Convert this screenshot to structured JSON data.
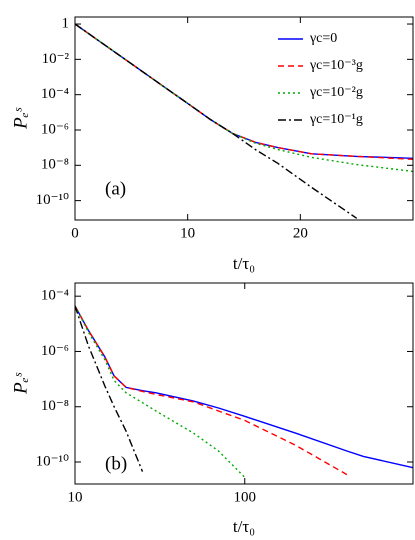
{
  "chart_data": [
    {
      "type": "line",
      "annotation": "(a)",
      "xlabel": "t/τ₀",
      "ylabel": "Pₑˢ",
      "x": [
        0,
        2,
        4,
        6,
        8,
        10,
        12,
        14,
        16,
        18,
        21,
        25,
        30
      ],
      "series": [
        {
          "name": "γc=0",
          "color": "#0000ff",
          "dash": "solid",
          "values": [
            1,
            0.126,
            0.0158,
            0.002,
            0.00025,
            3.2e-05,
            4e-06,
            6.3e-07,
            2e-07,
            1e-07,
            4.5e-08,
            3.2e-08,
            2.5e-08
          ]
        },
        {
          "name": "γc=10⁻³g",
          "color": "#ff0000",
          "dash": "dashed",
          "values": [
            1,
            0.126,
            0.0158,
            0.002,
            0.00025,
            3.2e-05,
            4e-06,
            6.3e-07,
            2e-07,
            1e-07,
            4.5e-08,
            3.2e-08,
            2.2e-08
          ]
        },
        {
          "name": "γc=10⁻²g",
          "color": "#00aa00",
          "dash": "dotted",
          "values": [
            1,
            0.126,
            0.0158,
            0.002,
            0.00025,
            3.2e-05,
            4e-06,
            6.3e-07,
            1.8e-07,
            7.9e-08,
            2.8e-08,
            1.1e-08,
            4.5e-09
          ]
        },
        {
          "name": "γc=10⁻¹g",
          "color": "#000000",
          "dash": "dashdot",
          "values": [
            1,
            0.126,
            0.0158,
            0.002,
            0.00025,
            3.2e-05,
            4e-06,
            6.3e-07,
            7.9e-08,
            1.3e-08,
            5.6e-10,
            1e-11,
            null
          ]
        }
      ],
      "xlim": [
        0,
        30
      ],
      "xticks": [
        0,
        10,
        20
      ],
      "ylim": [
        2.5,
        8e-12
      ],
      "ylog": true,
      "yticks": [
        1,
        {
          "value": 0.01,
          "label": "10⁻²"
        },
        {
          "value": 0.0001,
          "label": "10⁻⁴"
        },
        {
          "value": 1e-06,
          "label": "10⁻⁶"
        },
        {
          "value": 1e-08,
          "label": "10⁻⁸"
        },
        {
          "value": 1e-10,
          "label": "10⁻¹⁰"
        }
      ],
      "legend": "upper right"
    },
    {
      "type": "line",
      "annotation": "(b)",
      "xlabel": "t/τ₀",
      "ylabel": "Pₑˢ",
      "x": [
        10,
        12,
        15,
        17,
        20,
        25,
        30,
        50,
        70,
        100,
        200,
        400,
        500,
        975
      ],
      "series": [
        {
          "color": "#0000ff",
          "dash": "solid",
          "values": [
            4.4e-05,
            5.8e-06,
            6.3e-07,
            1.3e-07,
            5e-08,
            3.8e-08,
            3.2e-08,
            1.6e-08,
            9e-09,
            4.5e-09,
            1.1e-09,
            2.5e-10,
            1.6e-10,
            6.3e-11
          ]
        },
        {
          "color": "#ff0000",
          "dash": "dashed",
          "values": [
            4.4e-05,
            5.8e-06,
            6.3e-07,
            1.3e-07,
            5e-08,
            3.6e-08,
            2.8e-08,
            1.5e-08,
            7e-09,
            3.2e-09,
            4e-10,
            3.5e-11,
            null,
            null
          ]
        },
        {
          "color": "#00aa00",
          "dash": "dotted",
          "values": [
            4.4e-05,
            5e-06,
            5e-07,
            8.9e-08,
            3.2e-08,
            1.4e-08,
            7e-09,
            1.1e-09,
            2.5e-10,
            2.8e-11,
            null,
            null,
            null,
            null
          ]
        },
        {
          "color": "#000000",
          "dash": "dashdot",
          "values": [
            4.4e-05,
            1.6e-06,
            5.6e-08,
            1e-08,
            1.3e-09,
            4.5e-11,
            null,
            null,
            null,
            null,
            null,
            null,
            null,
            null
          ]
        }
      ],
      "xlim": [
        10,
        980
      ],
      "xlog": true,
      "xticks": [
        10,
        100
      ],
      "ylim": [
        0.0003,
        1.6e-11
      ],
      "ylog": true,
      "yticks": [
        {
          "value": 0.0001,
          "label": "10⁻⁴"
        },
        {
          "value": 1e-06,
          "label": "10⁻⁶"
        },
        {
          "value": 1e-08,
          "label": "10⁻⁸"
        },
        {
          "value": 1e-10,
          "label": "10⁻¹⁰"
        }
      ]
    }
  ]
}
